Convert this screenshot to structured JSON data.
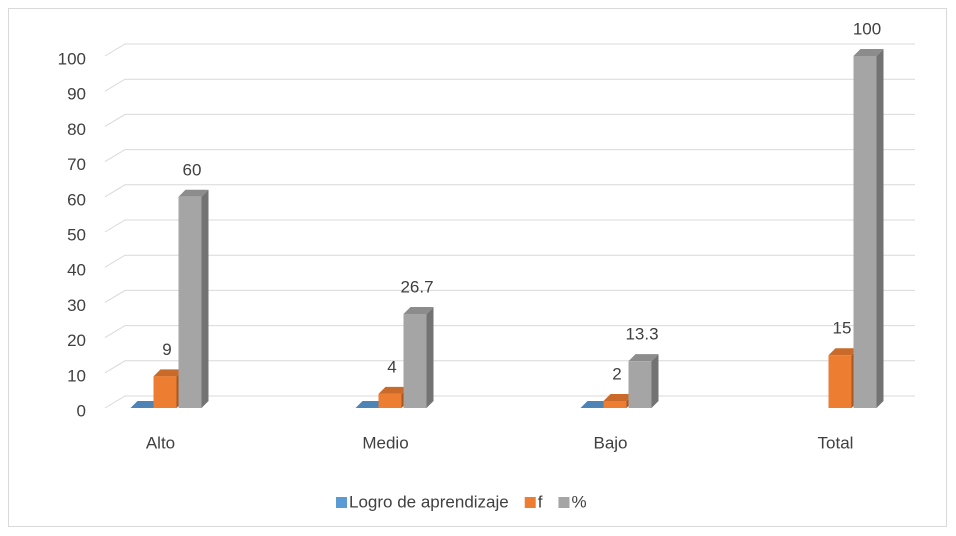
{
  "chart_data": {
    "type": "bar3d",
    "categories": [
      "Alto",
      "Medio",
      "Bajo",
      "Total"
    ],
    "series": [
      {
        "name": "Logro de aprendizaje",
        "color": "#5b9bd5",
        "values": [
          0,
          0,
          0,
          null
        ]
      },
      {
        "name": "f",
        "color": "#ed7d31",
        "values": [
          9,
          4,
          2,
          15
        ]
      },
      {
        "name": "%",
        "color": "#a5a5a5",
        "values": [
          60,
          26.7,
          13.3,
          100
        ]
      }
    ],
    "data_labels": [
      false,
      true,
      true
    ],
    "ylim": [
      0,
      100
    ],
    "yticks": [
      0,
      10,
      20,
      30,
      40,
      50,
      60,
      70,
      80,
      90,
      100
    ],
    "grid": true,
    "legend": "bottom"
  }
}
